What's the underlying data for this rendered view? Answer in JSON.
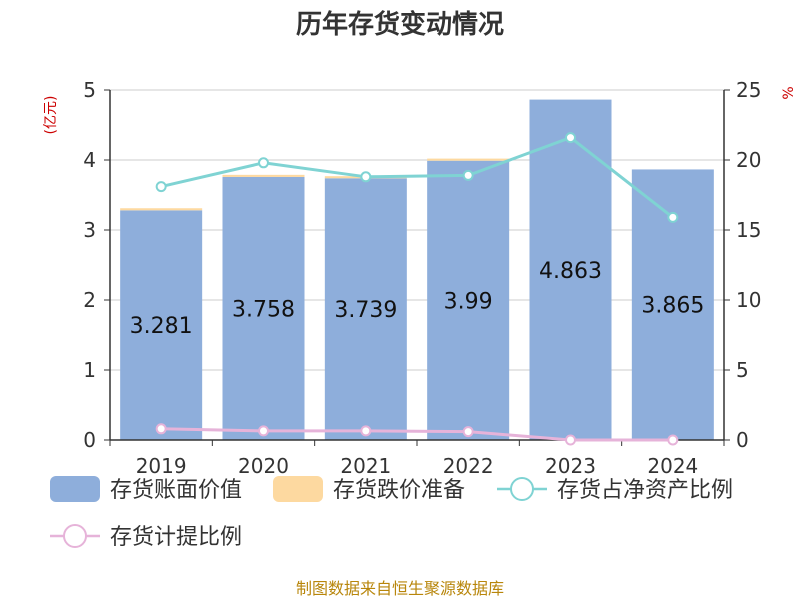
{
  "chart_data": {
    "type": "bar",
    "title": "历年存货变动情况",
    "categories": [
      "2019",
      "2020",
      "2021",
      "2022",
      "2023",
      "2024"
    ],
    "y_left": {
      "unit": "(亿元)",
      "range": [
        0,
        5
      ],
      "ticks": [
        "0",
        "1",
        "2",
        "3",
        "4",
        "5"
      ]
    },
    "y_right": {
      "unit": "%",
      "range": [
        0,
        25
      ],
      "ticks": [
        "0",
        "5",
        "10",
        "15",
        "20",
        "25"
      ]
    },
    "grid": true,
    "legend_position": "bottom",
    "series": [
      {
        "name": "存货账面价值",
        "type": "bar",
        "axis": "left",
        "color": "#8eaedb",
        "values": [
          3.281,
          3.758,
          3.739,
          3.99,
          4.863,
          3.865
        ],
        "labels": [
          "3.281",
          "3.758",
          "3.739",
          "3.99",
          "4.863",
          "3.865"
        ]
      },
      {
        "name": "存货跌价准备",
        "type": "bar",
        "axis": "left",
        "stacked": true,
        "color": "#fdd9a0",
        "values": [
          0.03,
          0.03,
          0.03,
          0.03,
          0.0,
          0.0
        ]
      },
      {
        "name": "存货占净资产比例",
        "type": "line",
        "axis": "right",
        "color": "#7fd3d3",
        "values": [
          18.1,
          19.8,
          18.8,
          18.9,
          21.6,
          15.9
        ]
      },
      {
        "name": "存货计提比例",
        "type": "line",
        "axis": "right",
        "color": "#e6b3d9",
        "values": [
          0.8,
          0.65,
          0.65,
          0.6,
          0.0,
          0.0
        ]
      }
    ]
  },
  "source": "制图数据来自恒生聚源数据库"
}
